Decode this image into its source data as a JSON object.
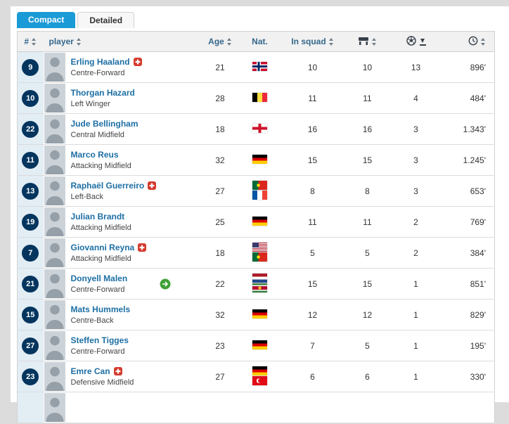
{
  "tabs": [
    {
      "label": "Compact",
      "active": true
    },
    {
      "label": "Detailed",
      "active": false
    }
  ],
  "table": {
    "columns": {
      "rank": "#",
      "player": "player",
      "age": "Age",
      "nat": "Nat.",
      "in_squad": "In squad",
      "appearances_icon": "bench-icon",
      "goals_icon": "soccer-ball-icon",
      "minutes_icon": "clock-icon"
    },
    "sort": {
      "column": "goals",
      "direction": "desc"
    },
    "rows": [
      {
        "number": "9",
        "name": "Erling Haaland",
        "injured": true,
        "transfer": false,
        "position": "Centre-Forward",
        "age": "21",
        "flags": [
          "norway"
        ],
        "in_squad": "10",
        "appearances": "10",
        "goals": "13",
        "minutes": "896'"
      },
      {
        "number": "10",
        "name": "Thorgan Hazard",
        "injured": false,
        "transfer": false,
        "position": "Left Winger",
        "age": "28",
        "flags": [
          "belgium"
        ],
        "in_squad": "11",
        "appearances": "11",
        "goals": "4",
        "minutes": "484'"
      },
      {
        "number": "22",
        "name": "Jude Bellingham",
        "injured": false,
        "transfer": false,
        "position": "Central Midfield",
        "age": "18",
        "flags": [
          "england"
        ],
        "in_squad": "16",
        "appearances": "16",
        "goals": "3",
        "minutes": "1.343'"
      },
      {
        "number": "11",
        "name": "Marco Reus",
        "injured": false,
        "transfer": false,
        "position": "Attacking Midfield",
        "age": "32",
        "flags": [
          "germany"
        ],
        "in_squad": "15",
        "appearances": "15",
        "goals": "3",
        "minutes": "1.245'"
      },
      {
        "number": "13",
        "name": "Raphaël Guerreiro",
        "injured": true,
        "transfer": false,
        "position": "Left-Back",
        "age": "27",
        "flags": [
          "portugal",
          "france"
        ],
        "in_squad": "8",
        "appearances": "8",
        "goals": "3",
        "minutes": "653'"
      },
      {
        "number": "19",
        "name": "Julian Brandt",
        "injured": false,
        "transfer": false,
        "position": "Attacking Midfield",
        "age": "25",
        "flags": [
          "germany"
        ],
        "in_squad": "11",
        "appearances": "11",
        "goals": "2",
        "minutes": "769'"
      },
      {
        "number": "7",
        "name": "Giovanni Reyna",
        "injured": true,
        "transfer": false,
        "position": "Attacking Midfield",
        "age": "18",
        "flags": [
          "usa",
          "portugal"
        ],
        "in_squad": "5",
        "appearances": "5",
        "goals": "2",
        "minutes": "384'"
      },
      {
        "number": "21",
        "name": "Donyell Malen",
        "injured": false,
        "transfer": true,
        "position": "Centre-Forward",
        "age": "22",
        "flags": [
          "netherlands",
          "suriname"
        ],
        "in_squad": "15",
        "appearances": "15",
        "goals": "1",
        "minutes": "851'"
      },
      {
        "number": "15",
        "name": "Mats Hummels",
        "injured": false,
        "transfer": false,
        "position": "Centre-Back",
        "age": "32",
        "flags": [
          "germany"
        ],
        "in_squad": "12",
        "appearances": "12",
        "goals": "1",
        "minutes": "829'"
      },
      {
        "number": "27",
        "name": "Steffen Tigges",
        "injured": false,
        "transfer": false,
        "position": "Centre-Forward",
        "age": "23",
        "flags": [
          "germany"
        ],
        "in_squad": "7",
        "appearances": "5",
        "goals": "1",
        "minutes": "195'"
      },
      {
        "number": "23",
        "name": "Emre Can",
        "injured": true,
        "transfer": false,
        "position": "Defensive Midfield",
        "age": "27",
        "flags": [
          "germany",
          "turkey"
        ],
        "in_squad": "6",
        "appearances": "6",
        "goals": "1",
        "minutes": "330'"
      },
      {
        "number": "",
        "name": "",
        "injured": false,
        "transfer": false,
        "position": "",
        "age": "",
        "flags": [],
        "in_squad": "",
        "appearances": "",
        "goals": "",
        "minutes": ""
      }
    ]
  },
  "colors": {
    "accent_blue": "#1A9AD6",
    "badge_navy": "#03355E",
    "rank_column_bg": "#E2EDF4",
    "injury_red": "#D43B2F",
    "transfer_green": "#3FA037",
    "link_blue": "#1D6FA5"
  }
}
